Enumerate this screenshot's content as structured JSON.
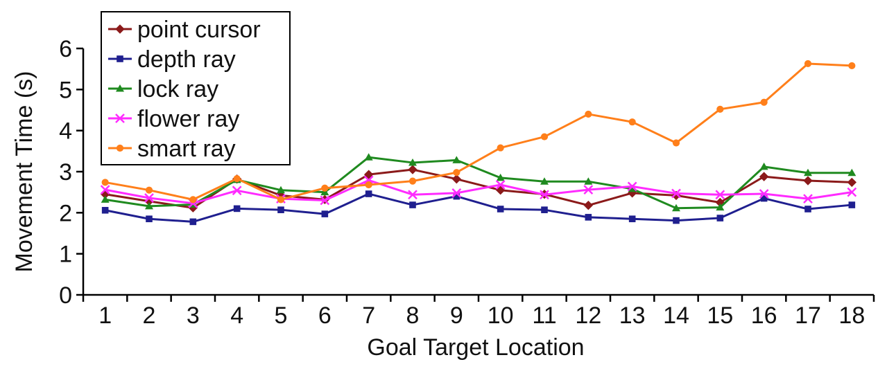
{
  "chart_data": {
    "type": "line",
    "title": "",
    "xlabel": "Goal Target Location",
    "ylabel": "Movement Time (s)",
    "ylim": [
      0,
      6
    ],
    "yticks": [
      "0",
      "1",
      "2",
      "3",
      "4",
      "5",
      "6"
    ],
    "categories": [
      "1",
      "2",
      "3",
      "4",
      "5",
      "6",
      "7",
      "8",
      "9",
      "10",
      "11",
      "12",
      "13",
      "14",
      "15",
      "16",
      "17",
      "18"
    ],
    "grid": false,
    "legend_position": "top-left",
    "series": [
      {
        "name": "point cursor",
        "color": "#8b1a1a",
        "marker": "diamond",
        "values": [
          2.45,
          2.28,
          2.12,
          2.82,
          2.42,
          2.32,
          2.93,
          3.05,
          2.82,
          2.55,
          2.45,
          2.18,
          2.48,
          2.42,
          2.25,
          2.88,
          2.78,
          2.74
        ]
      },
      {
        "name": "depth ray",
        "color": "#1f1f8f",
        "marker": "square",
        "values": [
          2.06,
          1.85,
          1.78,
          2.1,
          2.07,
          1.97,
          2.46,
          2.19,
          2.4,
          2.09,
          2.07,
          1.89,
          1.85,
          1.81,
          1.87,
          2.35,
          2.09,
          2.19
        ]
      },
      {
        "name": "lock ray",
        "color": "#1f8a1f",
        "marker": "triangle",
        "values": [
          2.32,
          2.16,
          2.2,
          2.8,
          2.55,
          2.5,
          3.35,
          3.22,
          3.28,
          2.85,
          2.76,
          2.76,
          2.58,
          2.11,
          2.13,
          3.12,
          2.97,
          2.97
        ]
      },
      {
        "name": "flower ray",
        "color": "#ff2bff",
        "marker": "x",
        "values": [
          2.56,
          2.36,
          2.23,
          2.54,
          2.34,
          2.3,
          2.79,
          2.44,
          2.48,
          2.68,
          2.44,
          2.56,
          2.64,
          2.47,
          2.44,
          2.46,
          2.34,
          2.5
        ]
      },
      {
        "name": "smart ray",
        "color": "#ff7f1a",
        "marker": "circle",
        "values": [
          2.74,
          2.55,
          2.32,
          2.83,
          2.32,
          2.6,
          2.68,
          2.77,
          2.98,
          3.58,
          3.85,
          4.4,
          4.21,
          3.7,
          4.52,
          4.69,
          5.63,
          5.58
        ]
      }
    ]
  }
}
